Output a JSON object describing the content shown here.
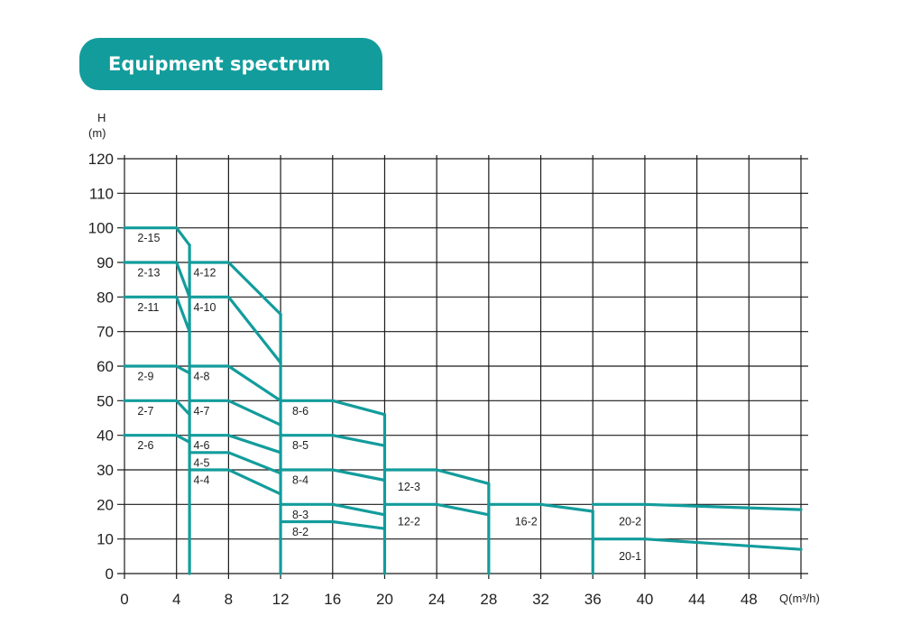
{
  "colors": {
    "accent": "#139c9c",
    "title_text": "#ffffff",
    "grid": "#1a1a1a",
    "text": "#222222"
  },
  "header": {
    "title": "Equipment spectrum"
  },
  "chart_data": {
    "type": "line",
    "title": "Equipment spectrum",
    "ylabel_top": "H",
    "ylabel_unit": "(m)",
    "xlabel": "Q(m³/h)",
    "xlim": [
      0,
      52
    ],
    "ylim": [
      0,
      120
    ],
    "x_ticks": [
      0,
      4,
      8,
      12,
      16,
      20,
      24,
      28,
      32,
      36,
      40,
      44,
      48
    ],
    "y_ticks": [
      0,
      10,
      20,
      30,
      40,
      50,
      60,
      70,
      80,
      90,
      100,
      110,
      120
    ],
    "grid": true,
    "series": [
      {
        "name": "2-15",
        "points": [
          [
            0,
            100
          ],
          [
            4,
            100
          ],
          [
            5,
            95
          ]
        ],
        "label_at": [
          1,
          97
        ]
      },
      {
        "name": "2-13",
        "points": [
          [
            0,
            90
          ],
          [
            4,
            90
          ],
          [
            5,
            80
          ]
        ],
        "label_at": [
          1,
          87
        ]
      },
      {
        "name": "2-11",
        "points": [
          [
            0,
            80
          ],
          [
            4,
            80
          ],
          [
            5,
            70
          ]
        ],
        "label_at": [
          1,
          77
        ]
      },
      {
        "name": "2-9",
        "points": [
          [
            0,
            60
          ],
          [
            4,
            60
          ],
          [
            5,
            58
          ]
        ],
        "label_at": [
          1,
          57
        ]
      },
      {
        "name": "2-7",
        "points": [
          [
            0,
            50
          ],
          [
            4,
            50
          ],
          [
            5,
            46
          ]
        ],
        "label_at": [
          1,
          47
        ]
      },
      {
        "name": "2-6",
        "points": [
          [
            0,
            40
          ],
          [
            4,
            40
          ],
          [
            5,
            38
          ]
        ],
        "label_at": [
          1,
          37
        ]
      },
      {
        "name": "4-12",
        "points": [
          [
            5,
            90
          ],
          [
            8,
            90
          ],
          [
            12,
            75
          ]
        ],
        "label_at": [
          5.3,
          87
        ]
      },
      {
        "name": "4-10",
        "points": [
          [
            5,
            80
          ],
          [
            8,
            80
          ],
          [
            12,
            61
          ]
        ],
        "label_at": [
          5.3,
          77
        ]
      },
      {
        "name": "4-8",
        "points": [
          [
            5,
            60
          ],
          [
            8,
            60
          ],
          [
            12,
            50
          ]
        ],
        "label_at": [
          5.3,
          57
        ]
      },
      {
        "name": "4-7",
        "points": [
          [
            5,
            50
          ],
          [
            8,
            50
          ],
          [
            12,
            43
          ]
        ],
        "label_at": [
          5.3,
          47
        ]
      },
      {
        "name": "4-6",
        "points": [
          [
            5,
            40
          ],
          [
            8,
            40
          ],
          [
            12,
            35
          ]
        ],
        "label_at": [
          5.3,
          37
        ]
      },
      {
        "name": "4-5",
        "points": [
          [
            5,
            35
          ],
          [
            8,
            35
          ],
          [
            12,
            29
          ]
        ],
        "label_at": [
          5.3,
          32
        ]
      },
      {
        "name": "4-4",
        "points": [
          [
            5,
            30
          ],
          [
            8,
            30
          ],
          [
            12,
            23
          ]
        ],
        "label_at": [
          5.3,
          27
        ]
      },
      {
        "name": "8-6",
        "points": [
          [
            12,
            50
          ],
          [
            16,
            50
          ],
          [
            20,
            46
          ]
        ],
        "label_at": [
          12.9,
          47
        ]
      },
      {
        "name": "8-5",
        "points": [
          [
            12,
            40
          ],
          [
            16,
            40
          ],
          [
            20,
            37
          ]
        ],
        "label_at": [
          12.9,
          37
        ]
      },
      {
        "name": "8-4",
        "points": [
          [
            12,
            30
          ],
          [
            16,
            30
          ],
          [
            20,
            27
          ]
        ],
        "label_at": [
          12.9,
          27
        ]
      },
      {
        "name": "8-3",
        "points": [
          [
            12,
            20
          ],
          [
            16,
            20
          ],
          [
            20,
            17
          ]
        ],
        "label_at": [
          12.9,
          17
        ]
      },
      {
        "name": "8-2",
        "points": [
          [
            12,
            15
          ],
          [
            16,
            15
          ],
          [
            20,
            13
          ]
        ],
        "label_at": [
          12.9,
          12
        ]
      },
      {
        "name": "12-3",
        "points": [
          [
            20,
            30
          ],
          [
            24,
            30
          ],
          [
            28,
            26
          ]
        ],
        "label_at": [
          21,
          25
        ]
      },
      {
        "name": "12-2",
        "points": [
          [
            20,
            20
          ],
          [
            24,
            20
          ],
          [
            28,
            17
          ]
        ],
        "label_at": [
          21,
          15
        ]
      },
      {
        "name": "16-2",
        "points": [
          [
            28,
            20
          ],
          [
            32,
            20
          ],
          [
            36,
            18
          ]
        ],
        "label_at": [
          30,
          15
        ]
      },
      {
        "name": "20-2",
        "points": [
          [
            36,
            20
          ],
          [
            40,
            20
          ],
          [
            52,
            18.5
          ]
        ],
        "label_at": [
          38,
          15
        ]
      },
      {
        "name": "20-1",
        "points": [
          [
            36,
            10
          ],
          [
            40,
            10
          ],
          [
            52,
            7
          ]
        ],
        "label_at": [
          38,
          5
        ]
      }
    ],
    "boundaries": [
      {
        "x": 5,
        "y_range": [
          0,
          95
        ]
      },
      {
        "x": 12,
        "y_range": [
          0,
          75
        ]
      },
      {
        "x": 20,
        "y_range": [
          0,
          46
        ]
      },
      {
        "x": 28,
        "y_range": [
          0,
          26
        ]
      },
      {
        "x": 36,
        "y_range": [
          0,
          18
        ]
      }
    ]
  }
}
